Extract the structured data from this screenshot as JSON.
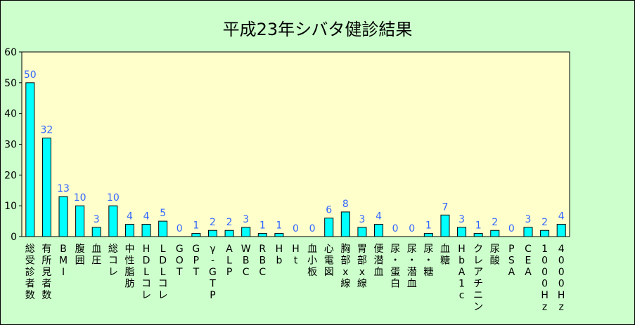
{
  "chart_data": {
    "type": "bar",
    "title": "平成23年シバタ健診結果",
    "categories": [
      "総受診者数",
      "有所見者数",
      "BMI",
      "腹囲",
      "血圧",
      "総コレ",
      "中性脂肪",
      "HDLコレ",
      "LDLコレ",
      "GOT",
      "GPT",
      "γ-GTP",
      "ALP",
      "WBC",
      "RBC",
      "Hb",
      "Ht",
      "血小板",
      "心電図",
      "胸部x線",
      "胃部x線",
      "便潜血",
      "尿・蛋白",
      "尿・潜血",
      "尿・糖",
      "血糖",
      "HbA1c",
      "クレアチニン",
      "尿酸",
      "PSA",
      "CEA",
      "1000Hz",
      "4000Hz"
    ],
    "values": [
      50,
      32,
      13,
      10,
      3,
      10,
      4,
      4,
      5,
      0,
      1,
      2,
      2,
      3,
      1,
      1,
      0,
      0,
      6,
      8,
      3,
      4,
      0,
      0,
      1,
      7,
      3,
      1,
      2,
      0,
      3,
      2,
      4
    ],
    "yticks": [
      "0",
      "10",
      "20",
      "30",
      "40",
      "50",
      "60"
    ],
    "ylim": [
      0,
      60
    ],
    "grid": false,
    "legend": "none",
    "colors": {
      "bar": "#00ffff",
      "plot_bg": "#ffffcc",
      "label": "#3366ff",
      "background": "#ccffcc"
    }
  }
}
